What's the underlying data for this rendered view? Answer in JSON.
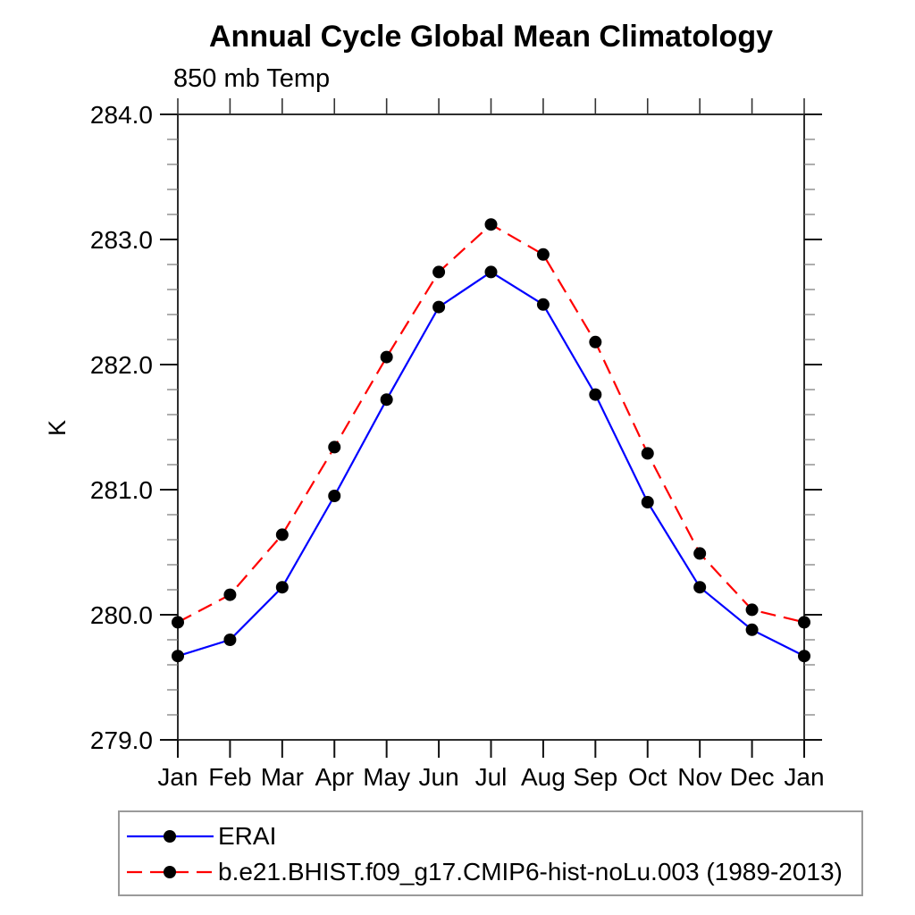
{
  "chart_data": {
    "type": "line",
    "title": "Annual Cycle Global Mean Climatology",
    "subtitle": "850 mb Temp",
    "xlabel": "",
    "ylabel": "K",
    "categories": [
      "Jan",
      "Feb",
      "Mar",
      "Apr",
      "May",
      "Jun",
      "Jul",
      "Aug",
      "Sep",
      "Oct",
      "Nov",
      "Dec",
      "Jan"
    ],
    "ylim": [
      279.0,
      284.0
    ],
    "y_major_step": 1.0,
    "y_minor_step": 0.2,
    "y_tick_labels": [
      "279.0",
      "280.0",
      "281.0",
      "282.0",
      "283.0",
      "284.0"
    ],
    "grid": false,
    "legend_position": "bottom-left",
    "axis_color": "#2e2e2e",
    "marker_color": "#000000",
    "series": [
      {
        "name": "ERAI",
        "color": "#0000ff",
        "line_style": "solid",
        "marker": "circle",
        "values": [
          279.67,
          279.8,
          280.22,
          280.95,
          281.72,
          282.46,
          282.74,
          282.48,
          281.76,
          280.9,
          280.22,
          279.88,
          279.67
        ]
      },
      {
        "name": "b.e21.BHIST.f09_g17.CMIP6-hist-noLu.003 (1989-2013)",
        "color": "#ff0000",
        "line_style": "dashed",
        "marker": "circle",
        "values": [
          279.94,
          280.16,
          280.64,
          281.34,
          282.06,
          282.74,
          283.12,
          282.88,
          282.18,
          281.29,
          280.49,
          280.04,
          279.94
        ]
      }
    ]
  }
}
